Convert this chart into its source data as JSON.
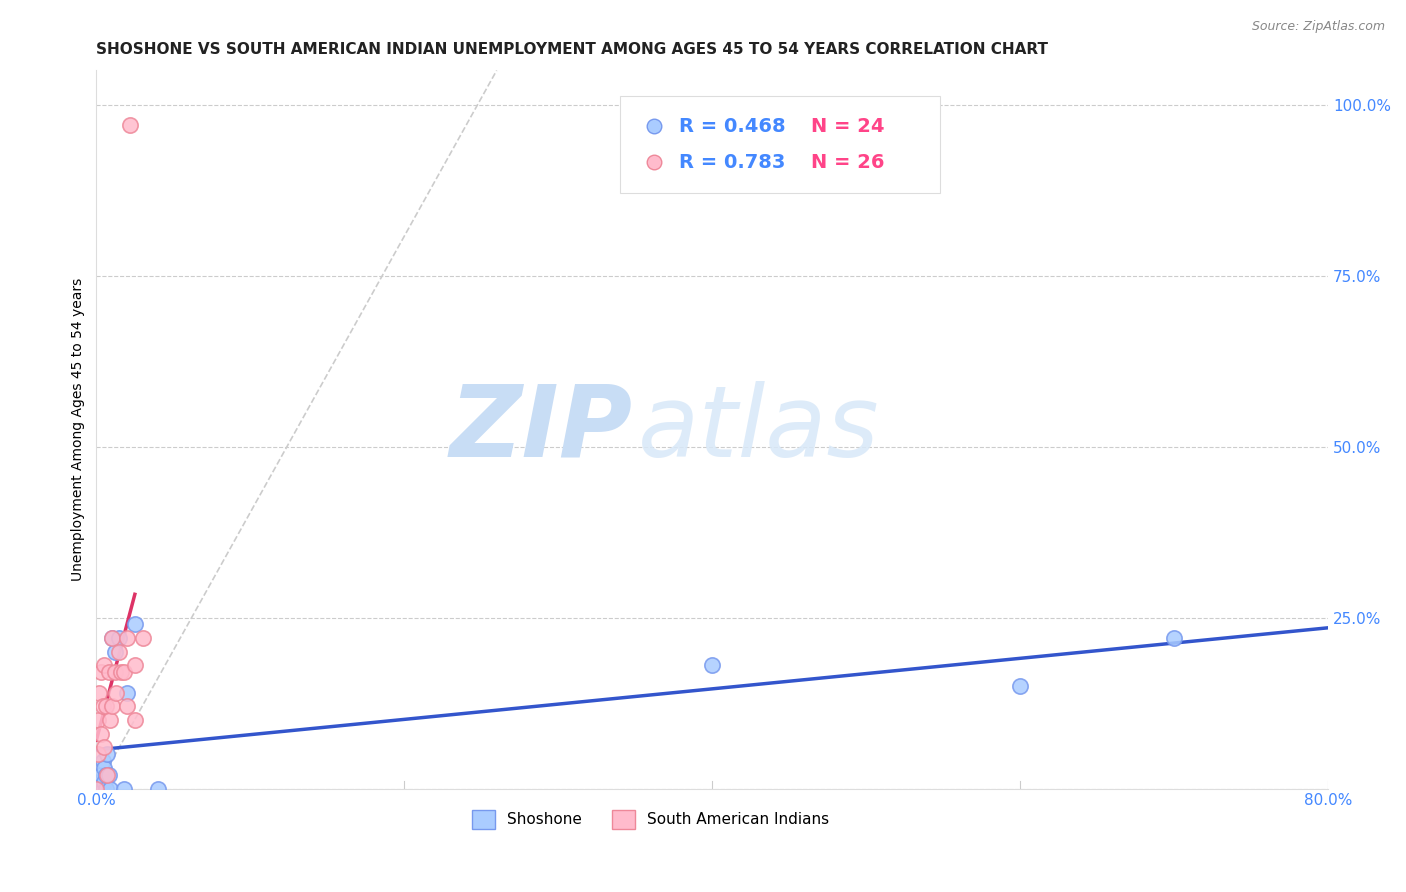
{
  "title": "SHOSHONE VS SOUTH AMERICAN INDIAN UNEMPLOYMENT AMONG AGES 45 TO 54 YEARS CORRELATION CHART",
  "source": "Source: ZipAtlas.com",
  "ylabel": "Unemployment Among Ages 45 to 54 years",
  "xlabel": "",
  "xlim": [
    0.0,
    0.8
  ],
  "ylim": [
    0.0,
    1.05
  ],
  "xticks": [
    0.0,
    0.2,
    0.4,
    0.6,
    0.8
  ],
  "xticklabels": [
    "0.0%",
    "",
    "",
    "",
    "80.0%"
  ],
  "ytick_positions": [
    0.0,
    0.25,
    0.5,
    0.75,
    1.0
  ],
  "ytick_labels": [
    "",
    "25.0%",
    "50.0%",
    "75.0%",
    "100.0%"
  ],
  "watermark_zip": "ZIP",
  "watermark_atlas": "atlas",
  "background_color": "#ffffff",
  "grid_color": "#cccccc",
  "shoshone_color": "#aaccff",
  "shoshone_edge": "#7799ee",
  "south_american_color": "#ffbbcc",
  "south_american_edge": "#ee8899",
  "shoshone_R": 0.468,
  "shoshone_N": 24,
  "south_american_R": 0.783,
  "south_american_N": 26,
  "legend_R_color": "#4488ff",
  "legend_N_color": "#ff4488",
  "shoshone_x": [
    0.001,
    0.001,
    0.002,
    0.003,
    0.003,
    0.004,
    0.004,
    0.005,
    0.005,
    0.006,
    0.006,
    0.007,
    0.008,
    0.009,
    0.01,
    0.012,
    0.015,
    0.018,
    0.02,
    0.025,
    0.04,
    0.4,
    0.6,
    0.7
  ],
  "shoshone_y": [
    0.0,
    0.01,
    0.0,
    0.01,
    0.02,
    0.0,
    0.04,
    0.01,
    0.03,
    0.0,
    0.02,
    0.05,
    0.02,
    0.0,
    0.22,
    0.2,
    0.22,
    0.0,
    0.14,
    0.24,
    0.0,
    0.18,
    0.15,
    0.22
  ],
  "south_american_x": [
    0.0,
    0.001,
    0.001,
    0.002,
    0.003,
    0.003,
    0.004,
    0.005,
    0.005,
    0.006,
    0.007,
    0.008,
    0.009,
    0.01,
    0.01,
    0.012,
    0.013,
    0.015,
    0.016,
    0.018,
    0.02,
    0.02,
    0.025,
    0.025,
    0.03,
    0.022
  ],
  "south_american_y": [
    0.0,
    0.05,
    0.1,
    0.14,
    0.08,
    0.17,
    0.12,
    0.06,
    0.18,
    0.12,
    0.02,
    0.17,
    0.1,
    0.12,
    0.22,
    0.17,
    0.14,
    0.2,
    0.17,
    0.17,
    0.12,
    0.22,
    0.1,
    0.18,
    0.22,
    0.97
  ],
  "shoshone_line_color": "#3355cc",
  "south_american_line_color": "#dd3366",
  "reference_line_color": "#cccccc",
  "marker_size": 11,
  "line_width": 2.5,
  "title_fontsize": 11,
  "axis_fontsize": 10,
  "tick_fontsize": 11,
  "legend_fontsize": 14
}
